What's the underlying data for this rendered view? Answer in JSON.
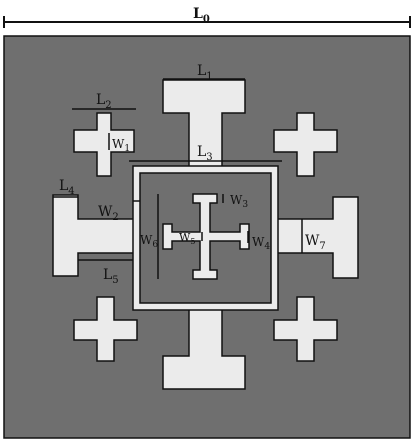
{
  "colors": {
    "background": "#ffffff",
    "substrate": "#6f6f6f",
    "metal": "#ebebeb",
    "outline": "#111111",
    "dimension_line": "#111111"
  },
  "labels": {
    "L0": {
      "base": "L",
      "sub": "0"
    },
    "L1": {
      "base": "L",
      "sub": "1"
    },
    "L2": {
      "base": "L",
      "sub": "2"
    },
    "L3": {
      "base": "L",
      "sub": "3"
    },
    "L4": {
      "base": "L",
      "sub": "4"
    },
    "L5": {
      "base": "L",
      "sub": "5"
    },
    "W1": {
      "base": "W",
      "sub": "1"
    },
    "W2": {
      "base": "W",
      "sub": "2"
    },
    "W3": {
      "base": "W",
      "sub": "3"
    },
    "W4": {
      "base": "W",
      "sub": "4"
    },
    "W5": {
      "base": "W",
      "sub": "5"
    },
    "W6": {
      "base": "W",
      "sub": "6"
    },
    "W7": {
      "base": "W",
      "sub": "7"
    }
  }
}
